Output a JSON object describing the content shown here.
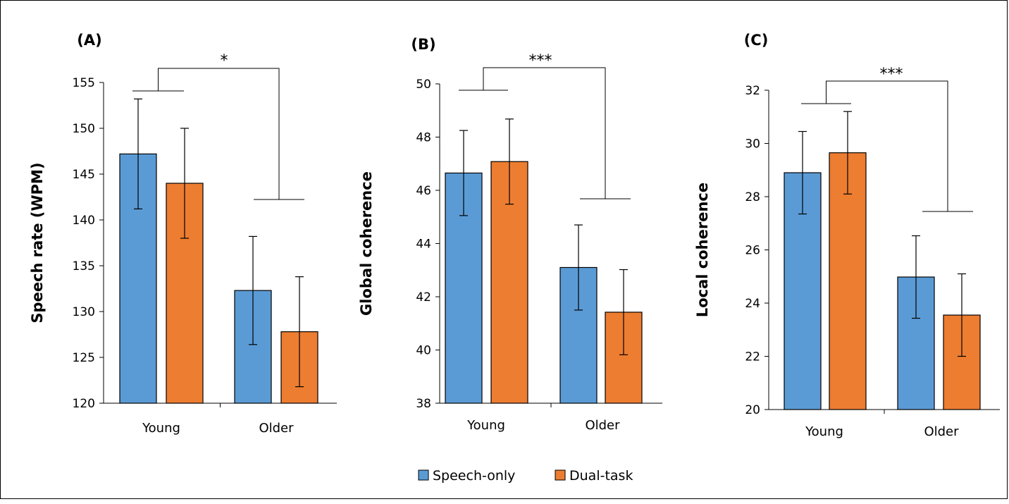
{
  "legend": [
    {
      "name": "Speech-only",
      "color": "#5b9bd5"
    },
    {
      "name": "Dual-task",
      "color": "#ed7d31"
    }
  ],
  "chart_data": [
    {
      "type": "bar",
      "panel_label": "(A)",
      "ylabel": "Speech rate (WPM)",
      "ylim": [
        120,
        155
      ],
      "yticks": [
        "120",
        "125",
        "130",
        "135",
        "140",
        "145",
        "150",
        "155"
      ],
      "categories": [
        "Young",
        "Older"
      ],
      "series": [
        {
          "name": "Speech-only",
          "values": [
            147.2,
            132.3
          ],
          "errors": [
            6.0,
            5.9
          ]
        },
        {
          "name": "Dual-task",
          "values": [
            144.0,
            127.8
          ],
          "errors": [
            6.0,
            6.0
          ]
        }
      ],
      "significance": "*",
      "grid": false
    },
    {
      "type": "bar",
      "panel_label": "(B)",
      "ylabel": "Global coherence",
      "ylim": [
        38,
        50
      ],
      "yticks": [
        "38",
        "40",
        "42",
        "44",
        "46",
        "48",
        "50"
      ],
      "categories": [
        "Young",
        "Older"
      ],
      "series": [
        {
          "name": "Speech-only",
          "values": [
            46.65,
            43.1
          ],
          "errors": [
            1.6,
            1.6
          ]
        },
        {
          "name": "Dual-task",
          "values": [
            47.08,
            41.42
          ],
          "errors": [
            1.6,
            1.6
          ]
        }
      ],
      "significance": "***",
      "grid": false
    },
    {
      "type": "bar",
      "panel_label": "(C)",
      "ylabel": "Local coherence",
      "ylim": [
        20,
        32
      ],
      "yticks": [
        "20",
        "22",
        "24",
        "26",
        "28",
        "30",
        "32"
      ],
      "categories": [
        "Young",
        "Older"
      ],
      "series": [
        {
          "name": "Speech-only",
          "values": [
            28.9,
            24.98
          ],
          "errors": [
            1.55,
            1.55
          ]
        },
        {
          "name": "Dual-task",
          "values": [
            29.65,
            23.55
          ],
          "errors": [
            1.55,
            1.55
          ]
        }
      ],
      "significance": "***",
      "grid": false
    }
  ]
}
